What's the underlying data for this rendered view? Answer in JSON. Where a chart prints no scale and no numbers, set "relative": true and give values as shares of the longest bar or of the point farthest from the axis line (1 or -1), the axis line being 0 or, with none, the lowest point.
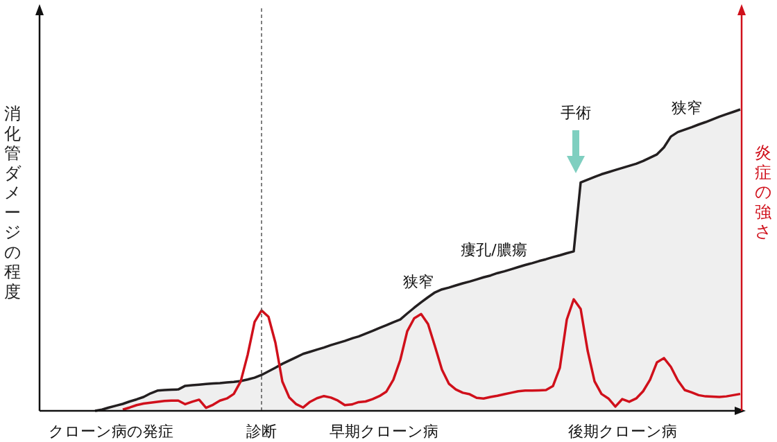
{
  "chart_data": {
    "type": "line",
    "relative": true,
    "ylabel": "消化管ダメージの程度",
    "y2label": "炎症の強さ",
    "categories": [
      null,
      null,
      null,
      null,
      null,
      null,
      null,
      null,
      null,
      null,
      null,
      null,
      null,
      null,
      null,
      null,
      null,
      null,
      null,
      null,
      null,
      null,
      null,
      null,
      null,
      null,
      null,
      null,
      null,
      null,
      null,
      null,
      null,
      null,
      null,
      null,
      null,
      null,
      null,
      null,
      null,
      null,
      null,
      null,
      null,
      null,
      null,
      null,
      null,
      null,
      null,
      null,
      null,
      null,
      null,
      null,
      null,
      null,
      null,
      null,
      null,
      null,
      null,
      null,
      null,
      null,
      null,
      null,
      null,
      null,
      null,
      null,
      null,
      null,
      null,
      null,
      null,
      null,
      null,
      null,
      null,
      null,
      null,
      null,
      null,
      null,
      null,
      null,
      null,
      null,
      null,
      null,
      null,
      null,
      null,
      null,
      null,
      null,
      null,
      null,
      null,
      null
    ],
    "series": [
      {
        "type": "area",
        "color": "#231f20",
        "values": [
          null,
          null,
          null,
          null,
          null,
          null,
          null,
          null,
          0,
          0.004,
          0.011,
          0.017,
          0.023,
          0.031,
          0.038,
          0.046,
          0.058,
          0.067,
          0.069,
          0.07,
          0.071,
          0.083,
          0.085,
          0.087,
          0.089,
          0.091,
          0.092,
          0.094,
          0.096,
          0.099,
          0.104,
          0.11,
          0.119,
          0.131,
          0.143,
          0.156,
          0.167,
          0.178,
          0.189,
          0.196,
          0.203,
          0.21,
          0.218,
          0.225,
          0.232,
          0.24,
          0.247,
          0.256,
          0.265,
          0.275,
          0.284,
          0.294,
          0.303,
          0.323,
          0.342,
          0.36,
          0.377,
          0.393,
          0.403,
          0.409,
          0.416,
          0.423,
          0.429,
          0.436,
          0.443,
          0.449,
          0.457,
          0.463,
          0.47,
          0.477,
          0.484,
          0.49,
          0.497,
          0.503,
          0.51,
          0.516,
          0.523,
          0.529,
          0.758,
          0.767,
          0.776,
          0.785,
          0.792,
          0.799,
          0.806,
          0.813,
          0.82,
          0.829,
          0.84,
          0.851,
          0.874,
          0.91,
          0.925,
          0.933,
          0.941,
          0.95,
          0.958,
          0.967,
          0.976,
          0.984,
          0.992,
          1
        ]
      },
      {
        "color": "#d0101b",
        "values": [
          null,
          null,
          null,
          null,
          null,
          null,
          null,
          null,
          null,
          null,
          null,
          null,
          0.004,
          0.011,
          0.019,
          0.024,
          0.027,
          0.03,
          0.033,
          0.034,
          0.034,
          0.022,
          0.03,
          0.037,
          0.01,
          0.02,
          0.034,
          0.041,
          0.056,
          0.098,
          0.186,
          0.295,
          0.333,
          0.312,
          0.226,
          0.097,
          0.044,
          0.022,
          0.011,
          0.03,
          0.042,
          0.049,
          0.044,
          0.034,
          0.019,
          0.021,
          0.029,
          0.031,
          0.039,
          0.049,
          0.064,
          0.103,
          0.169,
          0.264,
          0.307,
          0.321,
          0.288,
          0.214,
          0.137,
          0.09,
          0.071,
          0.06,
          0.055,
          0.043,
          0.041,
          0.046,
          0.05,
          0.055,
          0.06,
          0.065,
          0.067,
          0.067,
          0.068,
          0.069,
          0.082,
          0.143,
          0.303,
          0.37,
          0.338,
          0.2,
          0.098,
          0.056,
          0.041,
          0.014,
          0.039,
          0.03,
          0.041,
          0.065,
          0.103,
          0.161,
          0.175,
          0.146,
          0.101,
          0.069,
          0.061,
          0.052,
          0.048,
          0.047,
          0.046,
          0.048,
          0.052,
          0.056
        ]
      }
    ],
    "annotations": [
      "狭窄",
      "瘻孔/膿瘍",
      "手術",
      "狭窄",
      "クローン病の発症",
      "診断",
      "早期クローン病",
      "後期クローン病"
    ]
  }
}
